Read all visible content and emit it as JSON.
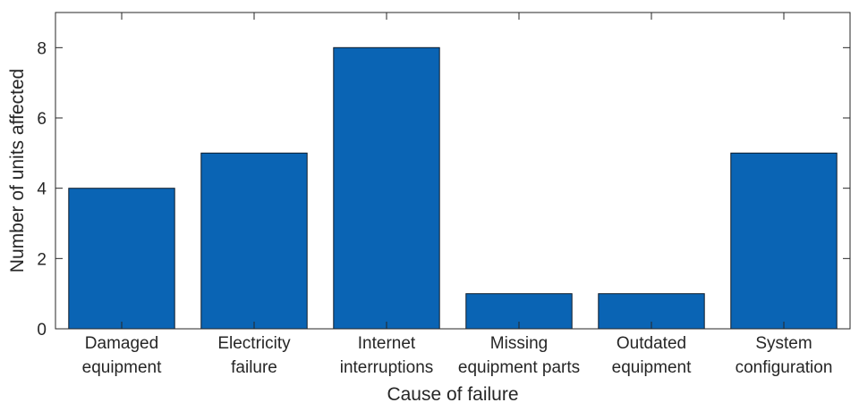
{
  "chart_data": {
    "type": "bar",
    "title": "",
    "xlabel": "Cause of failure",
    "ylabel": "Number of units affected",
    "categories": [
      [
        "Damaged",
        "equipment"
      ],
      [
        "Electricity",
        "failure"
      ],
      [
        "Internet",
        "interruptions"
      ],
      [
        "Missing",
        "equipment parts"
      ],
      [
        "Outdated",
        "equipment"
      ],
      [
        "System",
        "configuration"
      ]
    ],
    "values": [
      4,
      5,
      8,
      1,
      1,
      5
    ],
    "ylim": [
      0,
      9
    ],
    "yticks": [
      "0",
      "2",
      "4",
      "6",
      "8"
    ],
    "grid": false,
    "legend": "none",
    "colors": {
      "bar_fill": "#0a64b4",
      "bar_stroke": "#0d1b2a",
      "axis": "#262626"
    }
  }
}
